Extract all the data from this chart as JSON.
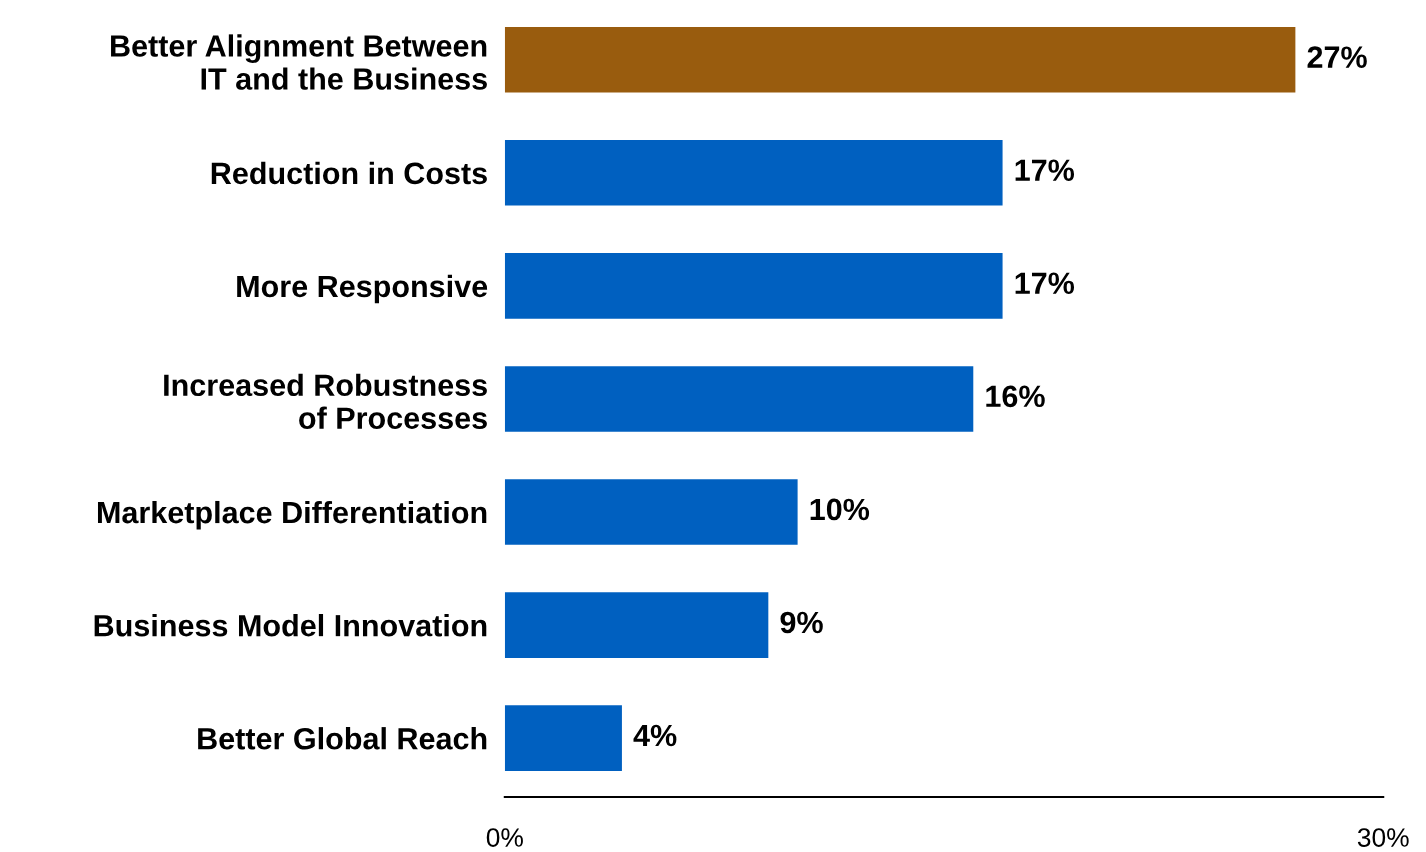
{
  "chart_data": {
    "type": "bar",
    "orientation": "horizontal",
    "categories": [
      "Better Alignment Between\nIT and the Business",
      "Reduction in Costs",
      "More Responsive",
      "Increased Robustness\nof Processes",
      "Marketplace Differentiation",
      "Business Model Innovation",
      "Better Global Reach"
    ],
    "values": [
      27,
      17,
      17,
      16,
      10,
      9,
      4
    ],
    "colors": [
      "#995c0e",
      "#0060c0",
      "#0060c0",
      "#0060c0",
      "#0060c0",
      "#0060c0",
      "#0060c0"
    ],
    "value_labels": [
      "27%",
      "17%",
      "17%",
      "16%",
      "10%",
      "9%",
      "4%"
    ],
    "xlim": [
      0,
      30
    ],
    "xticks": [
      {
        "value": 0,
        "label": "0%"
      },
      {
        "value": 30,
        "label": "30%"
      }
    ],
    "grid": false,
    "legend": false
  }
}
